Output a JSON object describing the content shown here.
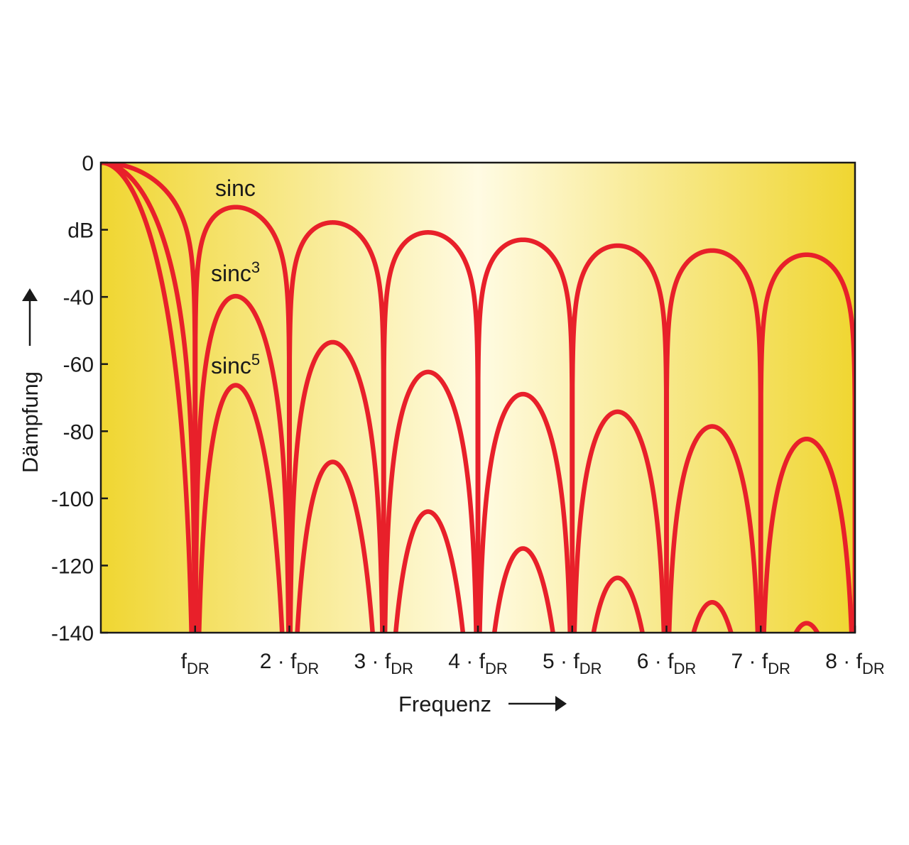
{
  "chart_data": {
    "type": "line",
    "xlabel": "Frequenz",
    "ylabel": "Dämpfung",
    "yunit": "dB",
    "xlim": [
      0,
      8
    ],
    "ylim": [
      -140,
      0
    ],
    "grid": false,
    "y_ticks": [
      {
        "value": 0,
        "label": "0"
      },
      {
        "value": -40,
        "label": "-40"
      },
      {
        "value": -60,
        "label": "-60"
      },
      {
        "value": -80,
        "label": "-80"
      },
      {
        "value": -100,
        "label": "-100"
      },
      {
        "value": -120,
        "label": "-120"
      },
      {
        "value": -140,
        "label": "-140"
      }
    ],
    "x_ticks": [
      {
        "value": 1,
        "prefix": "",
        "base": "f",
        "sub": "DR"
      },
      {
        "value": 2,
        "prefix": "2 · ",
        "base": "f",
        "sub": "DR"
      },
      {
        "value": 3,
        "prefix": "3 · ",
        "base": "f",
        "sub": "DR"
      },
      {
        "value": 4,
        "prefix": "4 · ",
        "base": "f",
        "sub": "DR"
      },
      {
        "value": 5,
        "prefix": "5 · ",
        "base": "f",
        "sub": "DR"
      },
      {
        "value": 6,
        "prefix": "6 · ",
        "base": "f",
        "sub": "DR"
      },
      {
        "value": 7,
        "prefix": "7 · ",
        "base": "f",
        "sub": "DR"
      },
      {
        "value": 8,
        "prefix": "8 · ",
        "base": "f",
        "sub": "DR"
      }
    ],
    "series": [
      {
        "name": "sinc",
        "base": "sinc",
        "sup": "",
        "power": 1,
        "color": "#e8202a",
        "peaks": [
          {
            "x": 1.5,
            "y": -13
          },
          {
            "x": 2.5,
            "y": -18
          },
          {
            "x": 3.5,
            "y": -20.5
          },
          {
            "x": 4.5,
            "y": -22.5
          },
          {
            "x": 5.5,
            "y": -24.5
          },
          {
            "x": 6.5,
            "y": -26
          },
          {
            "x": 7.5,
            "y": -27
          }
        ]
      },
      {
        "name": "sinc3",
        "base": "sinc",
        "sup": "3",
        "power": 3,
        "color": "#e8202a",
        "peaks": [
          {
            "x": 1.5,
            "y": -39
          },
          {
            "x": 2.5,
            "y": -53
          },
          {
            "x": 3.5,
            "y": -62
          },
          {
            "x": 4.5,
            "y": -68
          },
          {
            "x": 5.5,
            "y": -73
          },
          {
            "x": 6.5,
            "y": -78
          },
          {
            "x": 7.5,
            "y": -81
          }
        ]
      },
      {
        "name": "sinc5",
        "base": "sinc",
        "sup": "5",
        "power": 5,
        "color": "#e8202a",
        "peaks": [
          {
            "x": 1.5,
            "y": -66
          },
          {
            "x": 2.5,
            "y": -88
          },
          {
            "x": 3.5,
            "y": -103
          },
          {
            "x": 4.5,
            "y": -114
          },
          {
            "x": 5.5,
            "y": -123
          },
          {
            "x": 6.5,
            "y": -130
          },
          {
            "x": 7.5,
            "y": -136
          }
        ]
      }
    ],
    "background": {
      "edge_color": "#f0d631",
      "center_color": "#fffbe3"
    }
  }
}
